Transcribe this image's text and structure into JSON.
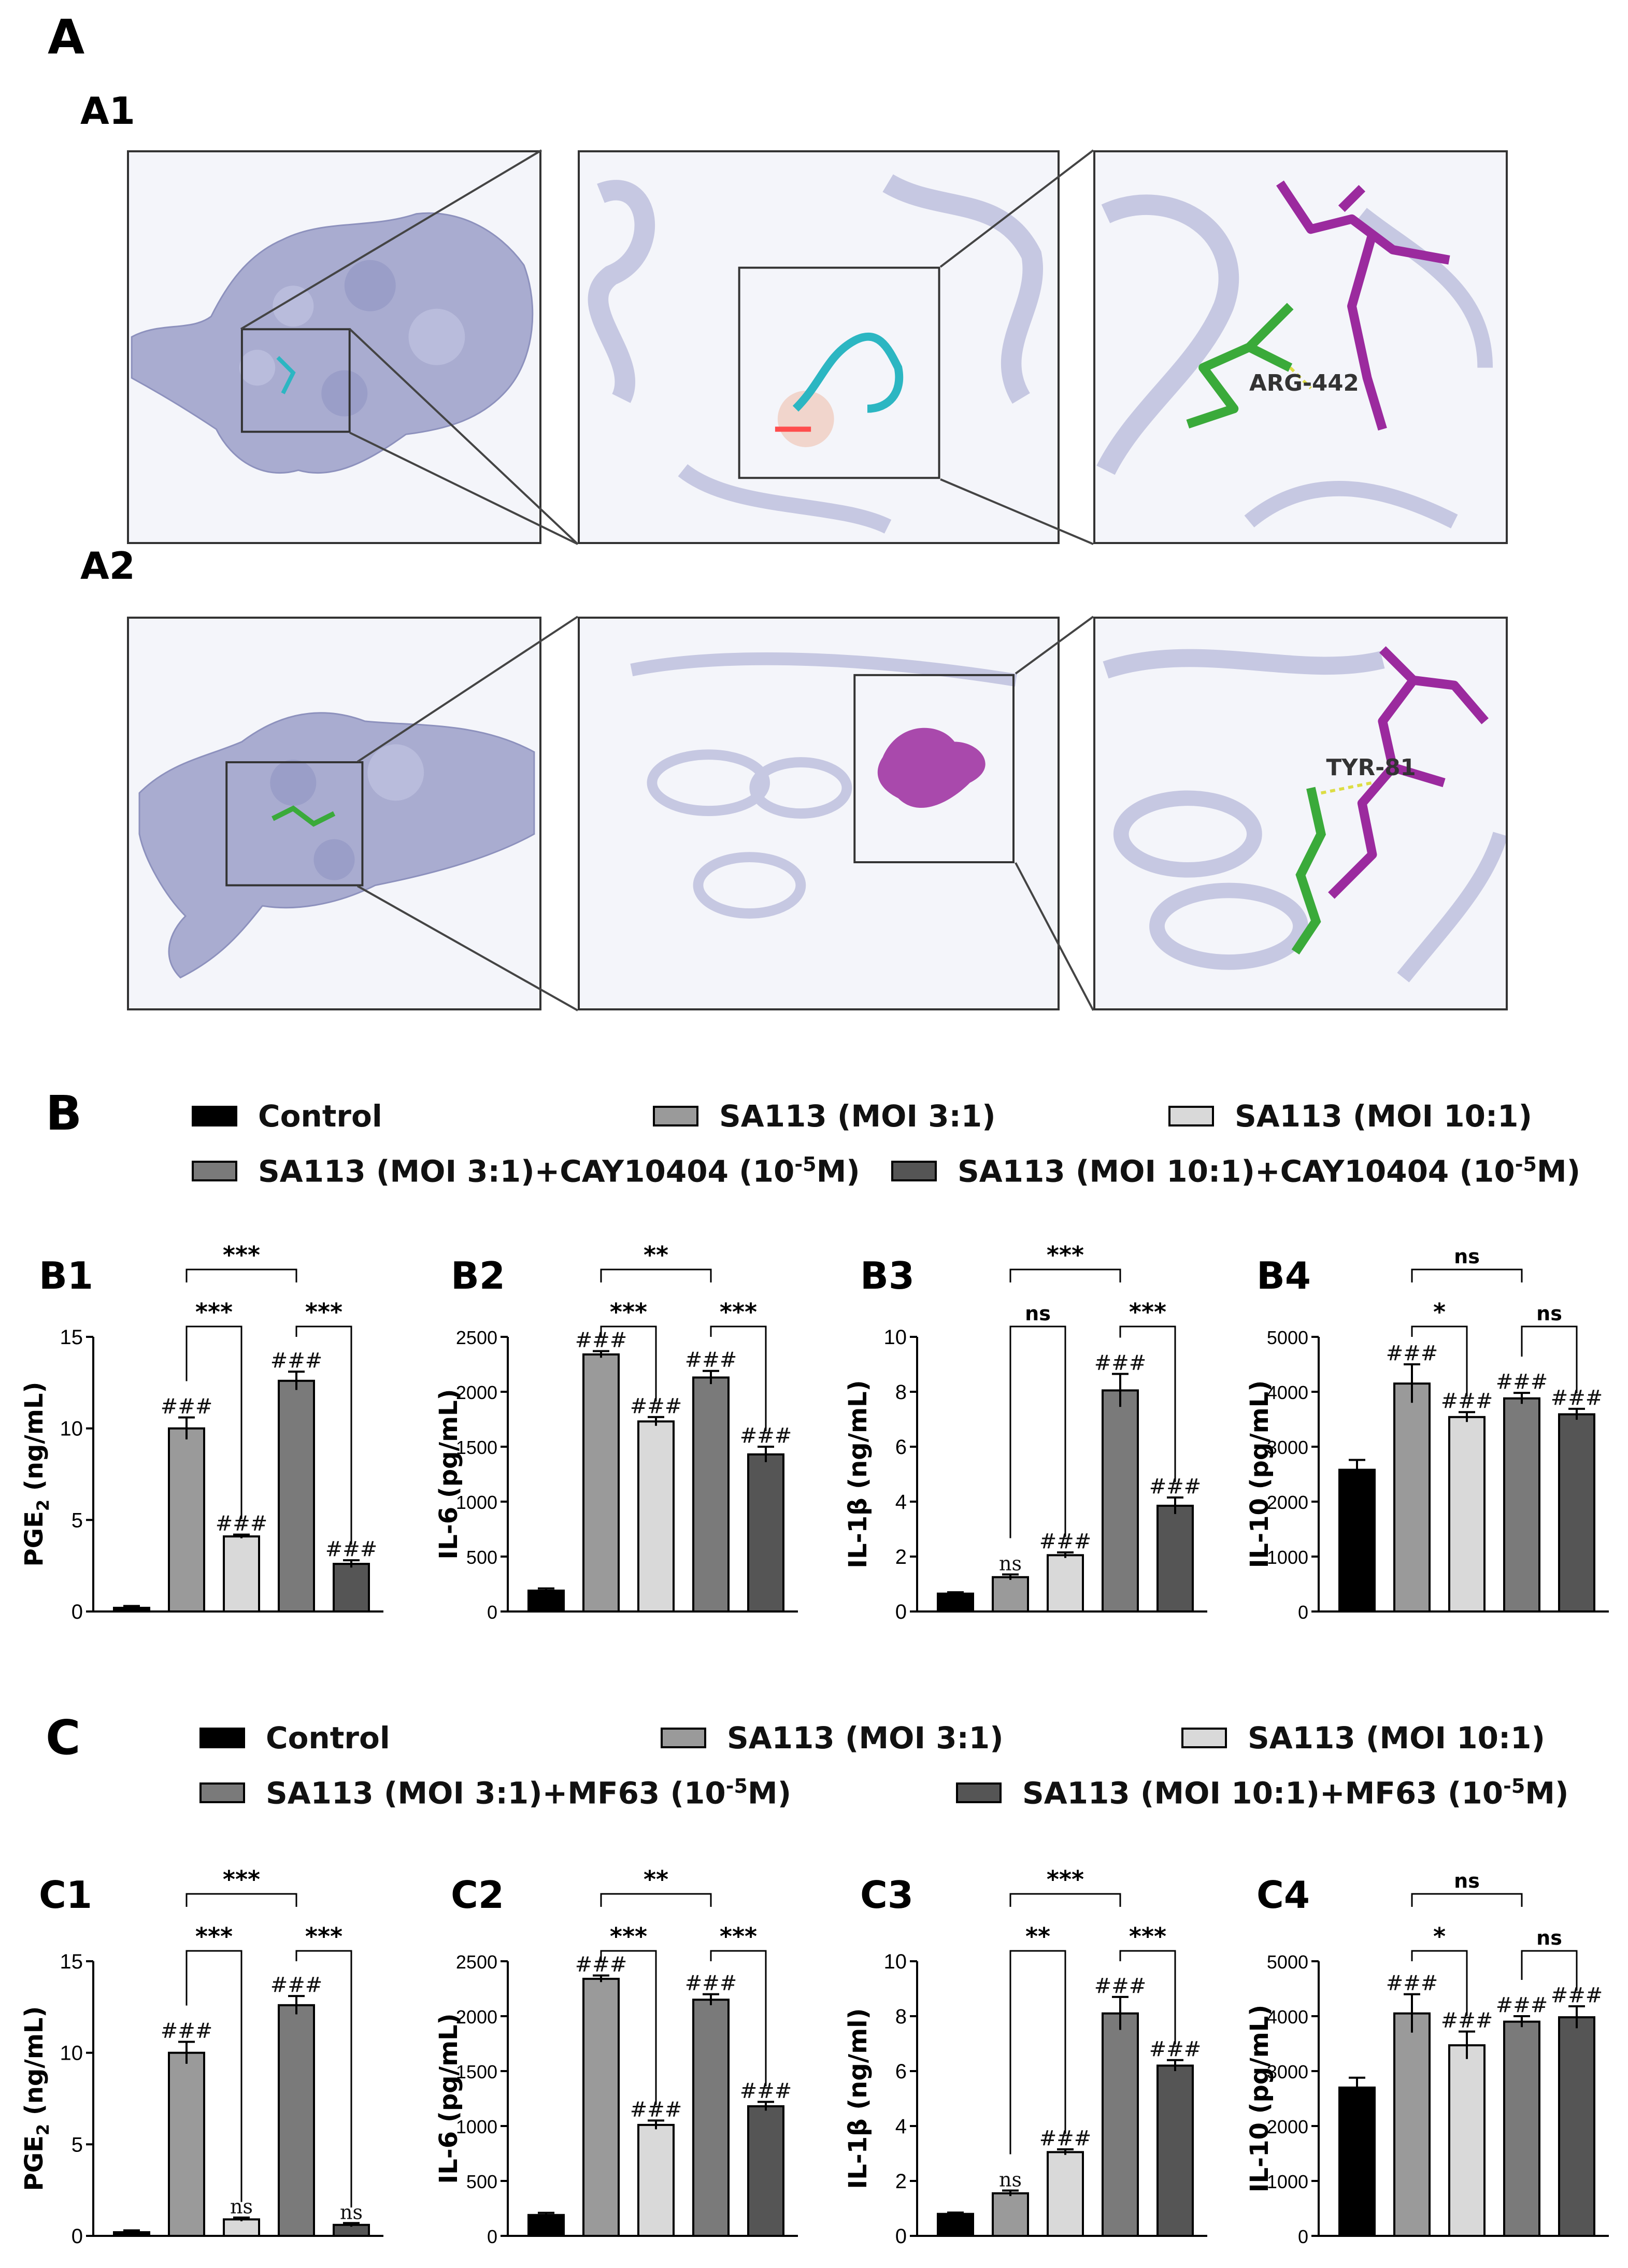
{
  "panels": {
    "A": "A",
    "A1": "A1",
    "A2": "A2",
    "B": "B",
    "C": "C",
    "B1": "B1",
    "B2": "B2",
    "B3": "B3",
    "B4": "B4",
    "C1": "C1",
    "C2": "C2",
    "C3": "C3",
    "C4": "C4"
  },
  "structure_labels": {
    "a1_residue": "ARG-442",
    "a2_residue": "TYR-81"
  },
  "colors": {
    "Control": "#000000",
    "SA113 (MOI 3:1)": "#9a9a9a",
    "SA113 (MOI 10:1)": "#d9d9d9",
    "inhibitor_3": "#7a7a7a",
    "inhibitor_10": "#555555",
    "protein": "#a9acd0",
    "ligand_magenta": "#9b2a9e",
    "ligand_green": "#3aaa3a",
    "ligand_cyan": "#2cb6c2"
  },
  "legend_B": [
    {
      "label_pre": "Control",
      "sup": "",
      "label_post": ""
    },
    {
      "label_pre": "SA113 (MOI 3:1)",
      "sup": "",
      "label_post": ""
    },
    {
      "label_pre": "SA113 (MOI 10:1)",
      "sup": "",
      "label_post": ""
    },
    {
      "label_pre": "SA113 (MOI 3:1)+CAY10404 (10",
      "sup": "-5",
      "label_post": "M)"
    },
    {
      "label_pre": "SA113 (MOI 10:1)+CAY10404 (10",
      "sup": "-5",
      "label_post": "M)"
    }
  ],
  "legend_C": [
    {
      "label_pre": "Control",
      "sup": "",
      "label_post": ""
    },
    {
      "label_pre": "SA113 (MOI 3:1)",
      "sup": "",
      "label_post": ""
    },
    {
      "label_pre": "SA113 (MOI 10:1)",
      "sup": "",
      "label_post": ""
    },
    {
      "label_pre": "SA113 (MOI 3:1)+MF63 (10",
      "sup": "-5",
      "label_post": "M)"
    },
    {
      "label_pre": "SA113 (MOI 10:1)+MF63 (10",
      "sup": "-5",
      "label_post": "M)"
    }
  ],
  "chart_data": [
    {
      "id": "B1",
      "type": "bar",
      "ylabel": "PGE2 (ng/mL)",
      "ylabel_main": "PGE",
      "ylabel_sub": "2",
      "ylabel_tail": " (ng/mL)",
      "ylim": [
        0,
        15
      ],
      "yticks": [
        0,
        5,
        10,
        15
      ],
      "values": [
        0.2,
        10.0,
        4.1,
        12.6,
        2.6
      ],
      "errors": [
        0.1,
        0.6,
        0.1,
        0.5,
        0.2
      ],
      "bar_labels": [
        "",
        "###",
        "###",
        "###",
        "###"
      ],
      "brackets": [
        {
          "from": 1,
          "to": 3,
          "text": "***",
          "level": 2
        },
        {
          "from": 1,
          "to": 2,
          "text": "***",
          "level": 1
        },
        {
          "from": 3,
          "to": 4,
          "text": "***",
          "level": 1
        }
      ]
    },
    {
      "id": "B2",
      "type": "bar",
      "ylabel": "IL-6 (pg/mL)",
      "ylabel_main": "IL-6 (pg/mL)",
      "ylabel_sub": "",
      "ylabel_tail": "",
      "ylim": [
        0,
        2500
      ],
      "yticks": [
        0,
        500,
        1000,
        1500,
        2000,
        2500
      ],
      "values": [
        190,
        2340,
        1730,
        2130,
        1430
      ],
      "errors": [
        20,
        30,
        40,
        60,
        70
      ],
      "bar_labels": [
        "",
        "###",
        "###",
        "###",
        "###"
      ],
      "brackets": [
        {
          "from": 1,
          "to": 3,
          "text": "**",
          "level": 2
        },
        {
          "from": 1,
          "to": 2,
          "text": "***",
          "level": 1
        },
        {
          "from": 3,
          "to": 4,
          "text": "***",
          "level": 1
        }
      ]
    },
    {
      "id": "B3",
      "type": "bar",
      "ylabel": "IL-1β (ng/mL)",
      "ylabel_main": "IL-1β (ng/mL)",
      "ylabel_sub": "",
      "ylabel_tail": "",
      "ylim": [
        0,
        10
      ],
      "yticks": [
        0,
        2,
        4,
        6,
        8,
        10
      ],
      "values": [
        0.65,
        1.25,
        2.05,
        8.05,
        3.85
      ],
      "errors": [
        0.05,
        0.1,
        0.1,
        0.6,
        0.3
      ],
      "bar_labels": [
        "",
        "ns",
        "###",
        "###",
        "###"
      ],
      "brackets": [
        {
          "from": 1,
          "to": 3,
          "text": "***",
          "level": 2
        },
        {
          "from": 1,
          "to": 2,
          "text": "ns",
          "level": 1
        },
        {
          "from": 3,
          "to": 4,
          "text": "***",
          "level": 1
        }
      ]
    },
    {
      "id": "B4",
      "type": "bar",
      "ylabel": "IL-10 (pg/mL)",
      "ylabel_main": "IL-10 (pg/mL)",
      "ylabel_sub": "",
      "ylabel_tail": "",
      "ylim": [
        0,
        5000
      ],
      "yticks": [
        0,
        1000,
        2000,
        3000,
        4000,
        5000
      ],
      "values": [
        2580,
        4150,
        3540,
        3880,
        3590
      ],
      "errors": [
        180,
        350,
        90,
        100,
        100
      ],
      "bar_labels": [
        "",
        "###",
        "###",
        "###",
        "###"
      ],
      "brackets": [
        {
          "from": 1,
          "to": 3,
          "text": "ns",
          "level": 2
        },
        {
          "from": 1,
          "to": 2,
          "text": "*",
          "level": 1
        },
        {
          "from": 3,
          "to": 4,
          "text": "ns",
          "level": 1
        }
      ]
    },
    {
      "id": "C1",
      "type": "bar",
      "ylabel": "PGE2 (ng/mL)",
      "ylabel_main": "PGE",
      "ylabel_sub": "2",
      "ylabel_tail": " (ng/mL)",
      "ylim": [
        0,
        15
      ],
      "yticks": [
        0,
        5,
        10,
        15
      ],
      "values": [
        0.2,
        10.0,
        0.9,
        12.6,
        0.6
      ],
      "errors": [
        0.1,
        0.6,
        0.1,
        0.5,
        0.1
      ],
      "bar_labels": [
        "",
        "###",
        "ns",
        "###",
        "ns"
      ],
      "brackets": [
        {
          "from": 1,
          "to": 3,
          "text": "***",
          "level": 2
        },
        {
          "from": 1,
          "to": 2,
          "text": "***",
          "level": 1
        },
        {
          "from": 3,
          "to": 4,
          "text": "***",
          "level": 1
        }
      ]
    },
    {
      "id": "C2",
      "type": "bar",
      "ylabel": "IL-6 (pg/mL)",
      "ylabel_main": "IL-6 (pg/mL)",
      "ylabel_sub": "",
      "ylabel_tail": "",
      "ylim": [
        0,
        2500
      ],
      "yticks": [
        0,
        500,
        1000,
        1500,
        2000,
        2500
      ],
      "values": [
        190,
        2340,
        1010,
        2150,
        1180
      ],
      "errors": [
        20,
        30,
        40,
        50,
        40
      ],
      "bar_labels": [
        "",
        "###",
        "###",
        "###",
        "###"
      ],
      "brackets": [
        {
          "from": 1,
          "to": 3,
          "text": "**",
          "level": 2
        },
        {
          "from": 1,
          "to": 2,
          "text": "***",
          "level": 1
        },
        {
          "from": 3,
          "to": 4,
          "text": "***",
          "level": 1
        }
      ]
    },
    {
      "id": "C3",
      "type": "bar",
      "ylabel": "IL-1β (ng/ml)",
      "ylabel_main": "IL-1β (ng/ml)",
      "ylabel_sub": "",
      "ylabel_tail": "",
      "ylim": [
        0,
        10
      ],
      "yticks": [
        0,
        2,
        4,
        6,
        8,
        10
      ],
      "values": [
        0.8,
        1.55,
        3.05,
        8.1,
        6.2
      ],
      "errors": [
        0.05,
        0.1,
        0.1,
        0.6,
        0.2
      ],
      "bar_labels": [
        "",
        "ns",
        "###",
        "###",
        "###"
      ],
      "brackets": [
        {
          "from": 1,
          "to": 3,
          "text": "***",
          "level": 2
        },
        {
          "from": 1,
          "to": 2,
          "text": "**",
          "level": 1
        },
        {
          "from": 3,
          "to": 4,
          "text": "***",
          "level": 1
        }
      ]
    },
    {
      "id": "C4",
      "type": "bar",
      "ylabel": "IL-10 (pg/mL)",
      "ylabel_main": "IL-10 (pg/mL)",
      "ylabel_sub": "",
      "ylabel_tail": "",
      "ylim": [
        0,
        5000
      ],
      "yticks": [
        0,
        1000,
        2000,
        3000,
        4000,
        5000
      ],
      "values": [
        2700,
        4050,
        3470,
        3900,
        3980
      ],
      "errors": [
        180,
        350,
        250,
        100,
        200
      ],
      "bar_labels": [
        "",
        "###",
        "###",
        "###",
        "###"
      ],
      "brackets": [
        {
          "from": 1,
          "to": 3,
          "text": "ns",
          "level": 2
        },
        {
          "from": 1,
          "to": 2,
          "text": "*",
          "level": 1
        },
        {
          "from": 3,
          "to": 4,
          "text": "ns",
          "level": 1
        }
      ]
    }
  ]
}
